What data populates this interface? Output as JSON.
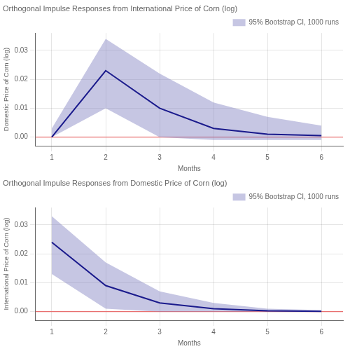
{
  "chart_data": [
    {
      "type": "line",
      "title": "Orthogonal Impulse Responses from International Price of Corn (log)",
      "xlabel": "Months",
      "ylabel": "Domestic Price of Corn (log)",
      "x": [
        1,
        2,
        3,
        4,
        5,
        6
      ],
      "series": [
        {
          "values": [
            0.0,
            0.023,
            0.01,
            0.003,
            0.001,
            0.0005
          ],
          "color": "#1a1a8c"
        }
      ],
      "band": {
        "name": "95% Bootstrap CI, 1000 runs",
        "upper": [
          0.003,
          0.034,
          0.022,
          0.012,
          0.007,
          0.004
        ],
        "lower": [
          0.0,
          0.01,
          0.0,
          -0.001,
          -0.001,
          -0.001
        ],
        "color": "#8080C0"
      },
      "zero_line": {
        "value": 0,
        "color": "#e87070"
      },
      "xlim": [
        0.7,
        6.4
      ],
      "xticks": [
        1,
        2,
        3,
        4,
        5,
        6
      ],
      "ylim": [
        -0.003,
        0.036
      ],
      "yticks": [
        {
          "value": 0,
          "label": "0.00"
        },
        0.01,
        0.02,
        0.03
      ],
      "grid": true,
      "legend": "upper right"
    },
    {
      "type": "line",
      "title": "Orthogonal Impulse Responses from Domestic Price of Corn (log)",
      "xlabel": "Months",
      "ylabel": "International Price of Corn (log)",
      "x": [
        1,
        2,
        3,
        4,
        5,
        6
      ],
      "series": [
        {
          "values": [
            0.024,
            0.009,
            0.003,
            0.001,
            0.0003,
            0.0001
          ],
          "color": "#1a1a8c"
        }
      ],
      "band": {
        "name": "95% Bootstrap CI, 1000 runs",
        "upper": [
          0.033,
          0.017,
          0.007,
          0.003,
          0.001,
          0.0005
        ],
        "lower": [
          0.013,
          0.001,
          0.0,
          0.0,
          0.0,
          0.0
        ],
        "color": "#8080C0"
      },
      "zero_line": {
        "value": 0,
        "color": "#e87070"
      },
      "xlim": [
        0.7,
        6.4
      ],
      "xticks": [
        1,
        2,
        3,
        4,
        5,
        6
      ],
      "ylim": [
        -0.003,
        0.036
      ],
      "yticks": [
        {
          "value": 0,
          "label": "0.00"
        },
        0.01,
        0.02,
        0.03
      ],
      "grid": true,
      "legend": "upper right"
    }
  ]
}
